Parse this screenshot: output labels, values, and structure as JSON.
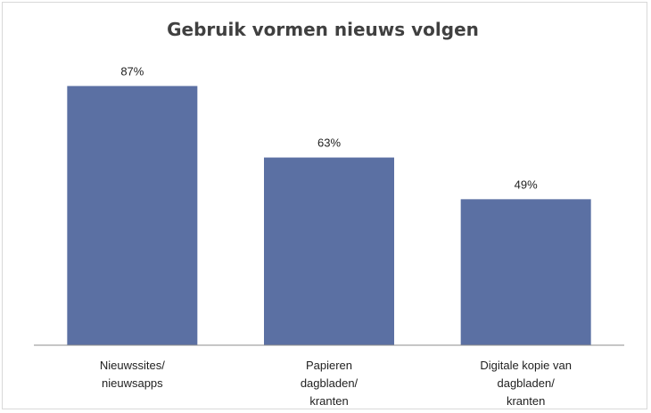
{
  "chart_data": {
    "type": "bar",
    "title": "Gebruik vormen nieuws volgen",
    "categories": [
      [
        "Nieuwssites/",
        "nieuwsapps"
      ],
      [
        "Papieren",
        "dagbladen/",
        "kranten"
      ],
      [
        "Digitale kopie van",
        "dagbladen/",
        "kranten"
      ]
    ],
    "values": [
      87,
      63,
      49
    ],
    "value_labels": [
      "87%",
      "63%",
      "49%"
    ],
    "ylim": [
      0,
      100
    ],
    "grid": false,
    "legend": "none",
    "bar_color": "#5b70a3",
    "axis_color": "#8c8c8c"
  }
}
